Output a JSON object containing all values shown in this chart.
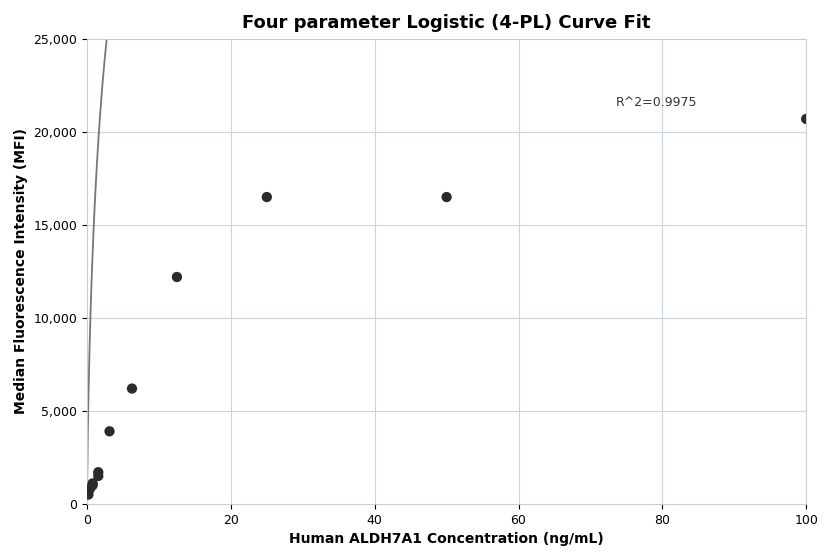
{
  "title": "Four parameter Logistic (4-PL) Curve Fit",
  "xlabel": "Human ALDH7A1 Concentration (ng/mL)",
  "ylabel": "Median Fluorescence Intensity (MFI)",
  "scatter_x": [
    0.195,
    0.391,
    0.781,
    0.781,
    1.563,
    1.563,
    3.125,
    6.25,
    12.5,
    25.0,
    50.0,
    100.0
  ],
  "scatter_y": [
    500,
    800,
    1000,
    1100,
    1500,
    1700,
    3900,
    6200,
    12200,
    16500,
    16500,
    20700
  ],
  "r_squared": "R^2=0.9975",
  "r2_x": 73.5,
  "r2_y": 21600,
  "xlim": [
    0,
    100
  ],
  "ylim": [
    0,
    25000
  ],
  "yticks": [
    0,
    5000,
    10000,
    15000,
    20000,
    25000
  ],
  "xticks": [
    0,
    20,
    40,
    60,
    80,
    100
  ],
  "4pl_A": 100,
  "4pl_B": 0.75,
  "4pl_C": 3.5,
  "4pl_D": 55000,
  "dot_color": "#2b2b2b",
  "dot_size": 55,
  "curve_color": "#777777",
  "curve_lw": 1.3,
  "grid_color": "#c8d4e8",
  "background_color": "#ffffff",
  "title_fontsize": 13,
  "label_fontsize": 10,
  "tick_fontsize": 9,
  "annotation_fontsize": 9
}
